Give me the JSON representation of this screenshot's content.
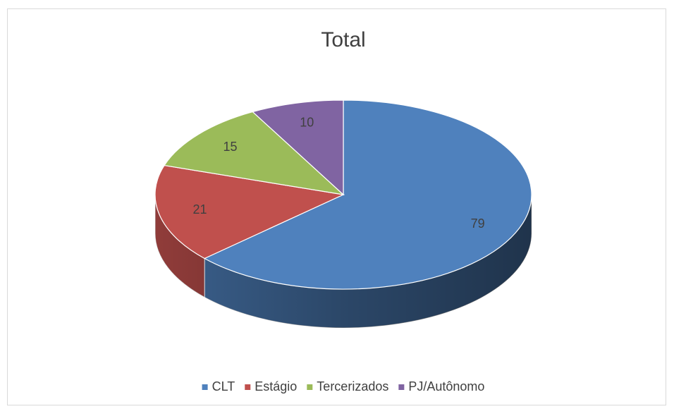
{
  "chart_data": {
    "type": "pie",
    "title": "Total",
    "categories": [
      "CLT",
      "Estágio",
      "Tercerizados",
      "PJ/Autônomo"
    ],
    "values": [
      79,
      21,
      15,
      10
    ],
    "colors": [
      "#4f81bd",
      "#c0504d",
      "#9bbb59",
      "#8064a2"
    ],
    "legend": "bottom"
  }
}
